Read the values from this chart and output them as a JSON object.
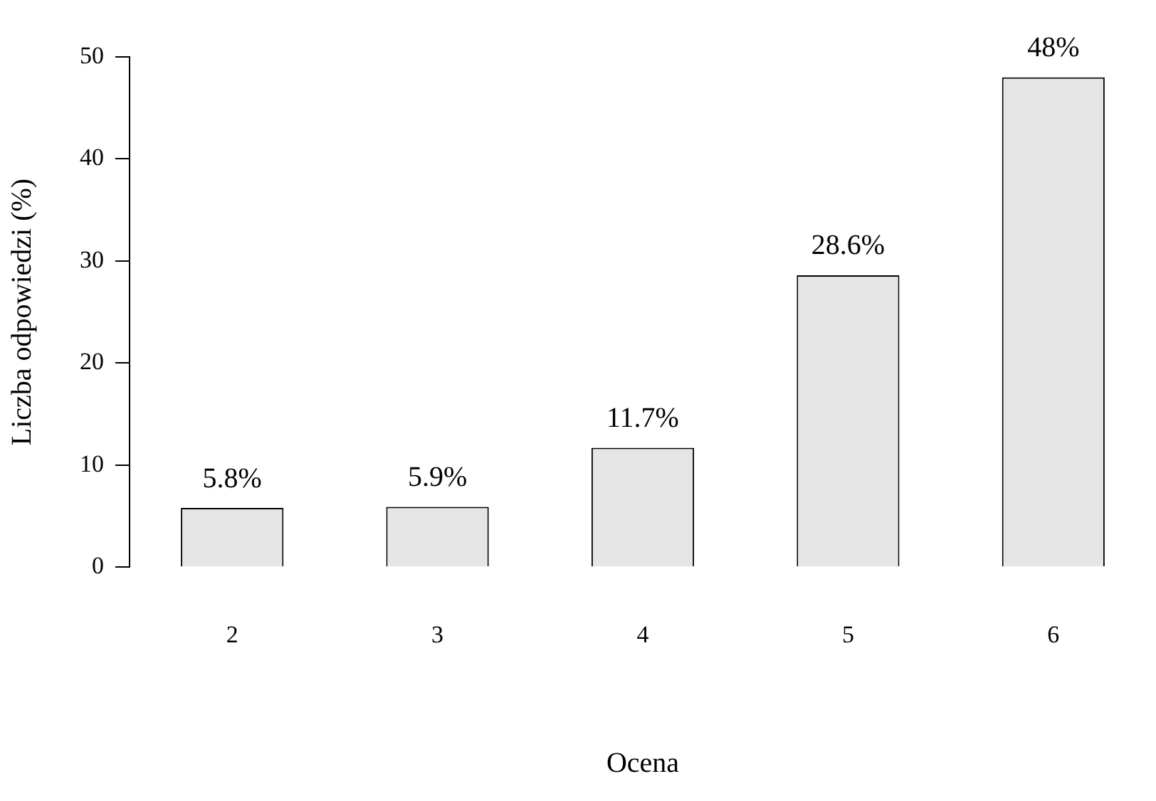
{
  "chart_data": {
    "type": "bar",
    "xlabel": "Ocena",
    "ylabel": "Liczba odpowiedzi (%)",
    "categories": [
      "2",
      "3",
      "4",
      "5",
      "6"
    ],
    "values": [
      5.8,
      5.9,
      11.7,
      28.6,
      48
    ],
    "value_labels": [
      "5.8%",
      "5.9%",
      "11.7%",
      "28.6%",
      "48%"
    ],
    "color": "#e5e5e5",
    "ylim": [
      0,
      50
    ],
    "yticks": [
      0,
      10,
      20,
      30,
      40,
      50
    ],
    "grid": false,
    "legend": false
  }
}
